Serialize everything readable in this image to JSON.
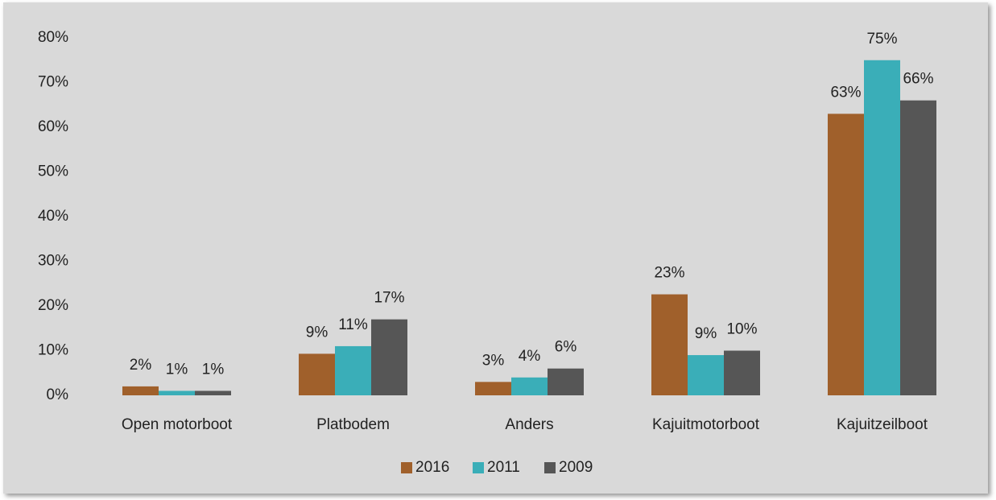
{
  "chart_data": {
    "type": "bar",
    "categories": [
      "Open motorboot",
      "Platbodem",
      "Anders",
      "Kajuitmotorboot",
      "Kajuitzeilboot"
    ],
    "series": [
      {
        "name": "2016",
        "color": "#a0602b",
        "values": [
          2,
          9.3,
          3,
          22.6,
          63
        ],
        "value_labels": [
          "2%",
          "9%",
          "3%",
          "23%",
          "63%"
        ]
      },
      {
        "name": "2011",
        "color": "#3aaeb8",
        "values": [
          1,
          11,
          4,
          9,
          75
        ],
        "value_labels": [
          "1%",
          "11%",
          "4%",
          "9%",
          "75%"
        ]
      },
      {
        "name": "2009",
        "color": "#565656",
        "values": [
          1,
          17,
          6,
          10,
          66
        ],
        "value_labels": [
          "1%",
          "17%",
          "6%",
          "10%",
          "66%"
        ]
      }
    ],
    "ylim": [
      0,
      80
    ],
    "yticks": [
      {
        "value": 0,
        "label": "0%"
      },
      {
        "value": 10,
        "label": "10%"
      },
      {
        "value": 20,
        "label": "20%"
      },
      {
        "value": 30,
        "label": "30%"
      },
      {
        "value": 40,
        "label": "40%"
      },
      {
        "value": 50,
        "label": "50%"
      },
      {
        "value": 60,
        "label": "60%"
      },
      {
        "value": 70,
        "label": "70%"
      },
      {
        "value": 80,
        "label": "80%"
      }
    ],
    "grid": false,
    "legend": "bottom"
  }
}
